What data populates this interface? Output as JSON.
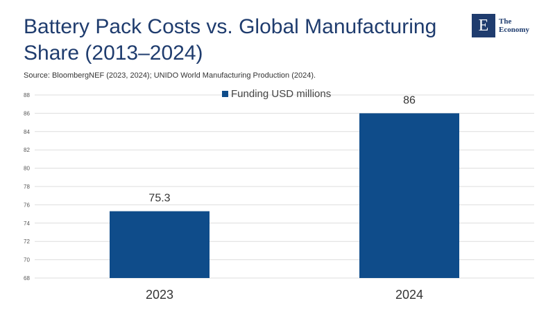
{
  "header": {
    "title": "Battery Pack Costs vs. Global Manufacturing Share (2013–2024)",
    "source": "Source: BloombergNEF (2023, 2024); UNIDO World Manufacturing Production (2024)."
  },
  "logo": {
    "letter": "E",
    "line1": "The",
    "line2": "Economy"
  },
  "colors": {
    "bar": "#0f4c8a",
    "title": "#1f3c6e",
    "grid": "#dddddd"
  },
  "chart_data": {
    "type": "bar",
    "categories": [
      "2023",
      "2024"
    ],
    "series": [
      {
        "name": "Funding USD millions",
        "values": [
          75.3,
          86
        ]
      }
    ],
    "data_labels": [
      "75.3",
      "86"
    ],
    "ylim": [
      68,
      88
    ],
    "yticks": [
      68,
      70,
      72,
      74,
      76,
      78,
      80,
      82,
      84,
      86,
      88
    ],
    "grid": true,
    "legend_position": "top-center"
  }
}
